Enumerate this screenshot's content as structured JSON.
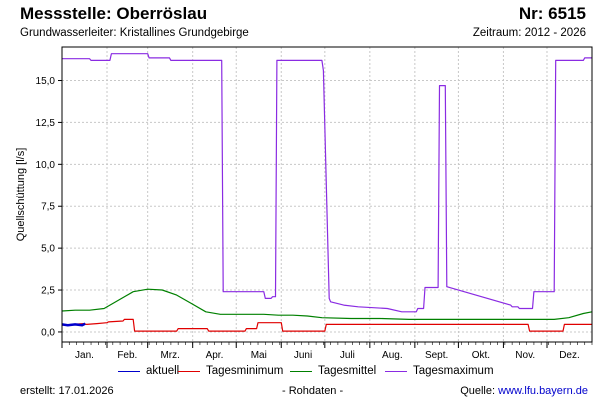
{
  "header": {
    "title": "Messstelle: Oberröslau",
    "number": "Nr: 6515",
    "aquifer": "Grundwasserleiter: Kristallines Grundgebirge",
    "period": "Zeitraum: 2012 - 2026"
  },
  "footer": {
    "created_label": "erstellt:",
    "created_date": "17.01.2026",
    "note": "- Rohdaten -",
    "source_label": "Quelle:",
    "source_link": "www.lfu.bayern.de"
  },
  "colors": {
    "aktuell": "#0000cc",
    "min": "#e00000",
    "mittel": "#008000",
    "max": "#8a2be2",
    "grid": "#c8c8c8"
  },
  "chart_data": {
    "type": "line",
    "ylabel": "Quellschüttung [l/s]",
    "ylim": [
      -0.6,
      17.0
    ],
    "yticks": [
      0.0,
      2.5,
      5.0,
      7.5,
      10.0,
      12.5,
      15.0
    ],
    "ytick_labels": [
      "0,0",
      "2,5",
      "5,0",
      "7,5",
      "10,0",
      "12,5",
      "15,0"
    ],
    "xlim": [
      1,
      366
    ],
    "month_labels": [
      "Jan.",
      "Feb.",
      "Mrz.",
      "Apr.",
      "Mai",
      "Juni",
      "Juli",
      "Aug.",
      "Sept.",
      "Okt.",
      "Nov.",
      "Dez."
    ],
    "month_starts": [
      1,
      32,
      60,
      91,
      121,
      152,
      182,
      213,
      244,
      274,
      305,
      335
    ],
    "grid": true,
    "legend_position": "bottom",
    "series": [
      {
        "key": "aktuell",
        "name": "aktuell",
        "x": [
          1,
          5,
          10,
          15,
          17
        ],
        "y": [
          0.45,
          0.4,
          0.45,
          0.4,
          0.5
        ]
      },
      {
        "key": "min",
        "name": "Tagesminimum",
        "x": [
          1,
          8,
          16,
          18,
          25,
          32,
          33,
          43,
          44,
          50,
          51,
          80,
          81,
          101,
          102,
          127,
          128,
          135,
          136,
          152,
          153,
          182,
          183,
          322,
          323,
          346,
          347,
          366
        ],
        "y": [
          0.4,
          0.45,
          0.5,
          0.45,
          0.5,
          0.55,
          0.6,
          0.65,
          0.75,
          0.75,
          0.05,
          0.05,
          0.2,
          0.2,
          0.05,
          0.05,
          0.2,
          0.2,
          0.55,
          0.55,
          0.05,
          0.05,
          0.45,
          0.45,
          0.05,
          0.05,
          0.45,
          0.45
        ]
      },
      {
        "key": "mittel",
        "name": "Tagesmittel",
        "x": [
          1,
          10,
          20,
          30,
          40,
          50,
          60,
          70,
          80,
          90,
          100,
          110,
          120,
          130,
          140,
          150,
          160,
          170,
          180,
          200,
          220,
          240,
          260,
          280,
          300,
          320,
          340,
          350,
          360,
          366
        ],
        "y": [
          1.25,
          1.3,
          1.3,
          1.4,
          1.9,
          2.4,
          2.55,
          2.5,
          2.2,
          1.7,
          1.2,
          1.05,
          1.05,
          1.05,
          1.05,
          1.0,
          1.0,
          0.95,
          0.85,
          0.8,
          0.8,
          0.75,
          0.75,
          0.75,
          0.75,
          0.75,
          0.75,
          0.85,
          1.1,
          1.2
        ]
      },
      {
        "key": "max",
        "name": "Tagesmaximum",
        "x": [
          1,
          20,
          21,
          34,
          35,
          60,
          61,
          75,
          76,
          111,
          112,
          140,
          141,
          145,
          146,
          148,
          149,
          180,
          181,
          185,
          186,
          195,
          205,
          225,
          235,
          245,
          246,
          250,
          251,
          260,
          261,
          265,
          266,
          310,
          311,
          315,
          316,
          325,
          326,
          340,
          341,
          360,
          361,
          366
        ],
        "y": [
          16.3,
          16.3,
          16.2,
          16.2,
          16.6,
          16.6,
          16.35,
          16.35,
          16.2,
          16.2,
          2.4,
          2.4,
          2.0,
          2.0,
          2.1,
          2.1,
          16.2,
          16.2,
          15.6,
          2.0,
          1.8,
          1.6,
          1.5,
          1.4,
          1.2,
          1.2,
          1.4,
          1.4,
          2.65,
          2.65,
          14.7,
          14.7,
          2.7,
          1.6,
          1.5,
          1.5,
          1.4,
          1.4,
          2.4,
          2.4,
          16.2,
          16.2,
          16.35,
          16.35
        ]
      }
    ]
  }
}
